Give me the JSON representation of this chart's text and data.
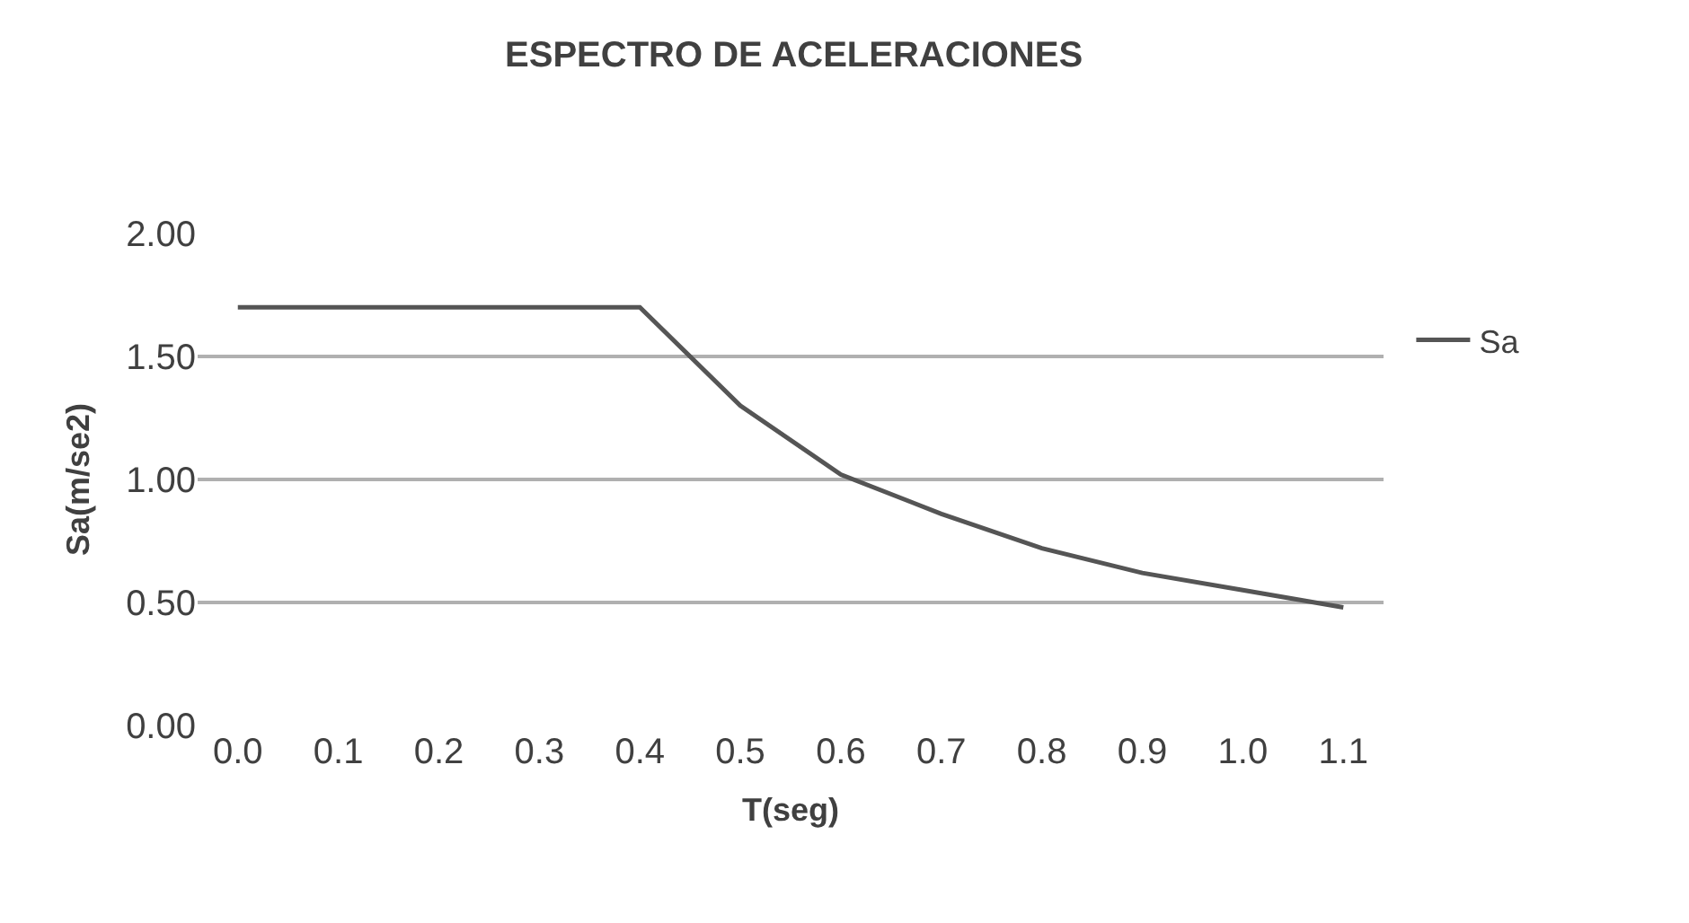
{
  "chart_data": {
    "type": "line",
    "title": "ESPECTRO DE ACELERACIONES",
    "xlabel": "T(seg)",
    "ylabel": "Sa(m/se2)",
    "categories": [
      "0.0",
      "0.1",
      "0.2",
      "0.3",
      "0.4",
      "0.5",
      "0.6",
      "0.7",
      "0.8",
      "0.9",
      "1.0",
      "1.1"
    ],
    "series": [
      {
        "name": "Sa",
        "color": "#555555",
        "values": [
          1.7,
          1.7,
          1.7,
          1.7,
          1.7,
          1.3,
          1.02,
          0.86,
          0.72,
          0.62,
          0.55,
          0.48
        ]
      }
    ],
    "ylim": [
      0,
      2
    ],
    "yticks": [
      {
        "value": 0,
        "label": "0.00"
      },
      {
        "value": 0.5,
        "label": "0.50"
      },
      {
        "value": 1,
        "label": "1.00"
      },
      {
        "value": 1.5,
        "label": "1.50"
      },
      {
        "value": 2,
        "label": "2.00"
      }
    ],
    "grid": "y",
    "legend": "right",
    "marker": "none",
    "line_style": "solid"
  }
}
